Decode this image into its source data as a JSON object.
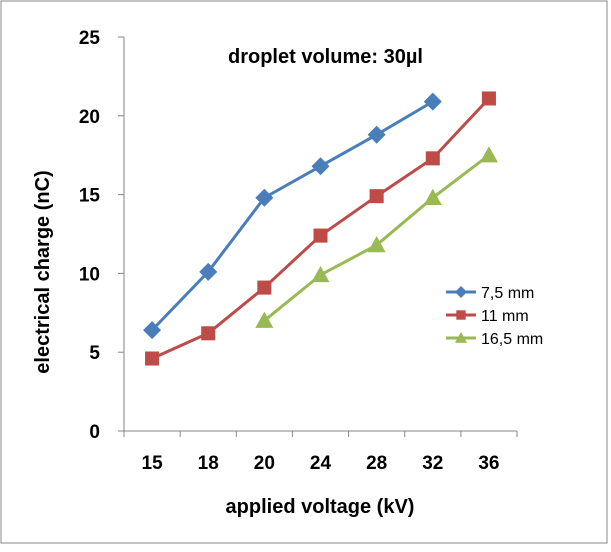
{
  "chart_data": {
    "type": "line",
    "annotation": "droplet volume: 30µl",
    "xlabel": "applied voltage (kV)",
    "ylabel": "electrical charge (nC)",
    "categories": [
      "15",
      "18",
      "20",
      "24",
      "28",
      "32",
      "36"
    ],
    "ylim": [
      0,
      25
    ],
    "yticks": [
      "0",
      "5",
      "10",
      "15",
      "20",
      "25"
    ],
    "grid": false,
    "legend_position": "right",
    "series": [
      {
        "name": "7,5 mm",
        "color": "#4a7ebb",
        "marker": "diamond",
        "values": [
          6.4,
          10.1,
          14.8,
          16.8,
          18.8,
          20.9,
          null
        ]
      },
      {
        "name": "11 mm",
        "color": "#be4b48",
        "marker": "square",
        "values": [
          4.6,
          6.2,
          9.1,
          12.4,
          14.9,
          17.3,
          21.1
        ]
      },
      {
        "name": "16,5 mm",
        "color": "#98b954",
        "marker": "triangle",
        "values": [
          null,
          null,
          7.0,
          9.9,
          11.8,
          14.8,
          17.5
        ]
      }
    ]
  }
}
